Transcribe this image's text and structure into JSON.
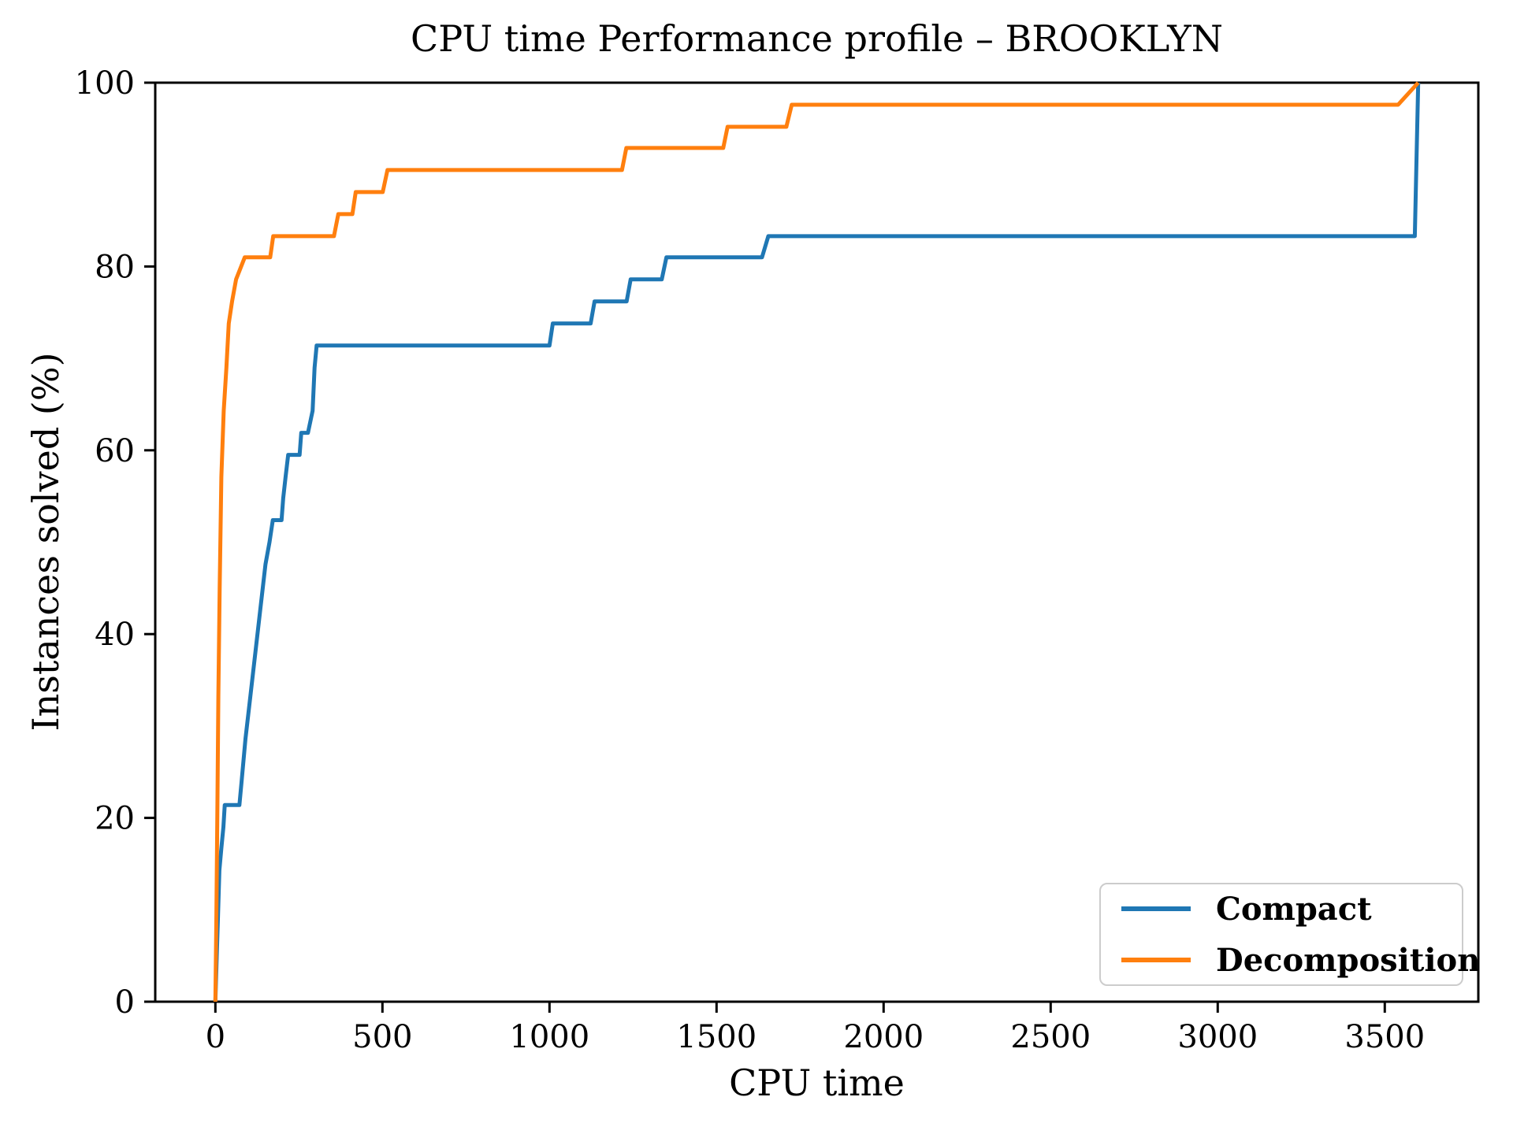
{
  "chart_data": {
    "type": "line",
    "subtype": "step-performance-profile",
    "title": "CPU time Performance profile – BROOKLYN",
    "xlabel": "CPU time",
    "ylabel": "Instances solved (%)",
    "xlim": [
      -180,
      3780
    ],
    "ylim": [
      0,
      100
    ],
    "x_ticks": [
      0,
      500,
      1000,
      1500,
      2000,
      2500,
      3000,
      3500
    ],
    "y_ticks": [
      0,
      20,
      40,
      60,
      80,
      100
    ],
    "grid": false,
    "legend_position": "lower right",
    "axis_color": "#000000",
    "series": [
      {
        "name": "Compact",
        "color": "#1f77b4",
        "x": [
          0,
          4,
          8,
          12,
          18,
          24,
          28,
          72,
          78,
          90,
          105,
          120,
          135,
          150,
          162,
          172,
          198,
          203,
          210,
          218,
          252,
          257,
          277,
          291,
          297,
          303,
          1000,
          1010,
          1123,
          1135,
          1231,
          1243,
          1336,
          1350,
          1636,
          1655,
          3590,
          3600
        ],
        "y": [
          0,
          4.8,
          9.5,
          14.3,
          16.7,
          19.0,
          21.4,
          21.4,
          23.8,
          28.6,
          33.3,
          38.1,
          42.9,
          47.6,
          50.0,
          52.4,
          52.4,
          54.8,
          57.1,
          59.5,
          59.5,
          61.9,
          61.9,
          64.3,
          69.0,
          71.4,
          71.4,
          73.8,
          73.8,
          76.2,
          76.2,
          78.6,
          78.6,
          81.0,
          81.0,
          83.3,
          83.3,
          100
        ]
      },
      {
        "name": "Decomposition",
        "color": "#ff7f0e",
        "x": [
          0,
          3,
          6,
          9,
          13,
          18,
          25,
          33,
          40,
          50,
          62,
          77,
          88,
          164,
          173,
          183,
          355,
          368,
          410,
          420,
          501,
          515,
          1217,
          1230,
          1520,
          1533,
          1709,
          1725,
          3540,
          3600
        ],
        "y": [
          0,
          9.5,
          21.4,
          33.3,
          45.2,
          57.1,
          64.3,
          69.0,
          73.8,
          76.2,
          78.6,
          80.0,
          81.0,
          81.0,
          83.3,
          83.3,
          83.3,
          85.7,
          85.7,
          88.1,
          88.1,
          90.5,
          90.5,
          92.9,
          92.9,
          95.2,
          95.2,
          97.6,
          97.6,
          100
        ]
      }
    ]
  }
}
